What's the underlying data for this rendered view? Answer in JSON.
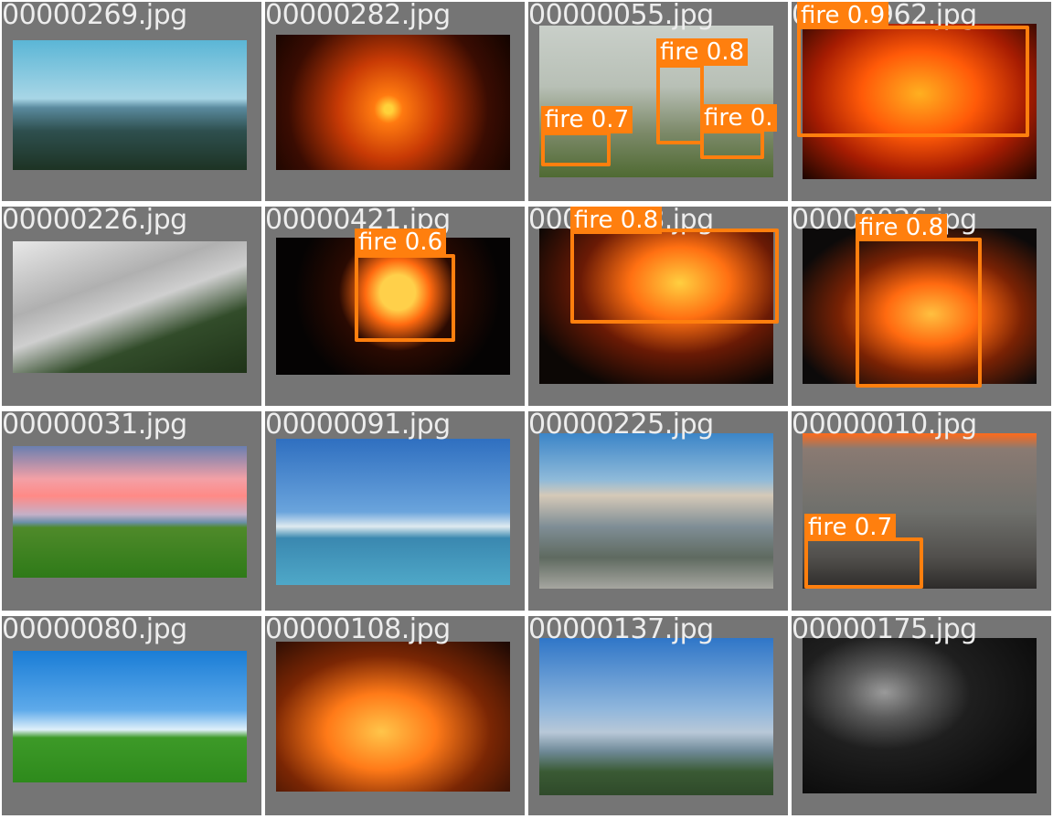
{
  "grid": {
    "background_color": "#757575",
    "box_color": "#ff7f0e",
    "cells": [
      {
        "filename": "00000269.jpg",
        "scene": "sky-mtn",
        "detections": []
      },
      {
        "filename": "00000282.jpg",
        "scene": "sunset",
        "detections": []
      },
      {
        "filename": "00000055.jpg",
        "scene": "forest-smoke",
        "detections": [
          {
            "label": "fire 0.8"
          },
          {
            "label": "fire 0.7"
          },
          {
            "label": "fire 0."
          }
        ]
      },
      {
        "filename": "00000962.jpg",
        "scene": "firefighters-big",
        "detections": [
          {
            "label": "fire 0.9"
          }
        ]
      },
      {
        "filename": "00000226.jpg",
        "scene": "wildfire-aerial",
        "detections": []
      },
      {
        "filename": "00000421.jpg",
        "scene": "night-fire",
        "detections": [
          {
            "label": "fire 0.6"
          }
        ]
      },
      {
        "filename": "00000208.jpg",
        "scene": "firefighters-hose",
        "detections": [
          {
            "label": "fire 0.8"
          }
        ]
      },
      {
        "filename": "00000026.jpg",
        "scene": "burning-tree",
        "detections": [
          {
            "label": "fire 0.8"
          }
        ]
      },
      {
        "filename": "00000031.jpg",
        "scene": "pink-clouds",
        "detections": []
      },
      {
        "filename": "00000091.jpg",
        "scene": "sea-blue",
        "detections": []
      },
      {
        "filename": "00000225.jpg",
        "scene": "smoke-plume",
        "detections": []
      },
      {
        "filename": "00000010.jpg",
        "scene": "grey-fire",
        "detections": [
          {
            "label": "fire 0.7"
          }
        ]
      },
      {
        "filename": "00000080.jpg",
        "scene": "green-field",
        "detections": []
      },
      {
        "filename": "00000108.jpg",
        "scene": "forest-fire",
        "detections": []
      },
      {
        "filename": "00000137.jpg",
        "scene": "mountain-view",
        "detections": []
      },
      {
        "filename": "00000175.jpg",
        "scene": "dark-smoke",
        "detections": []
      }
    ]
  }
}
